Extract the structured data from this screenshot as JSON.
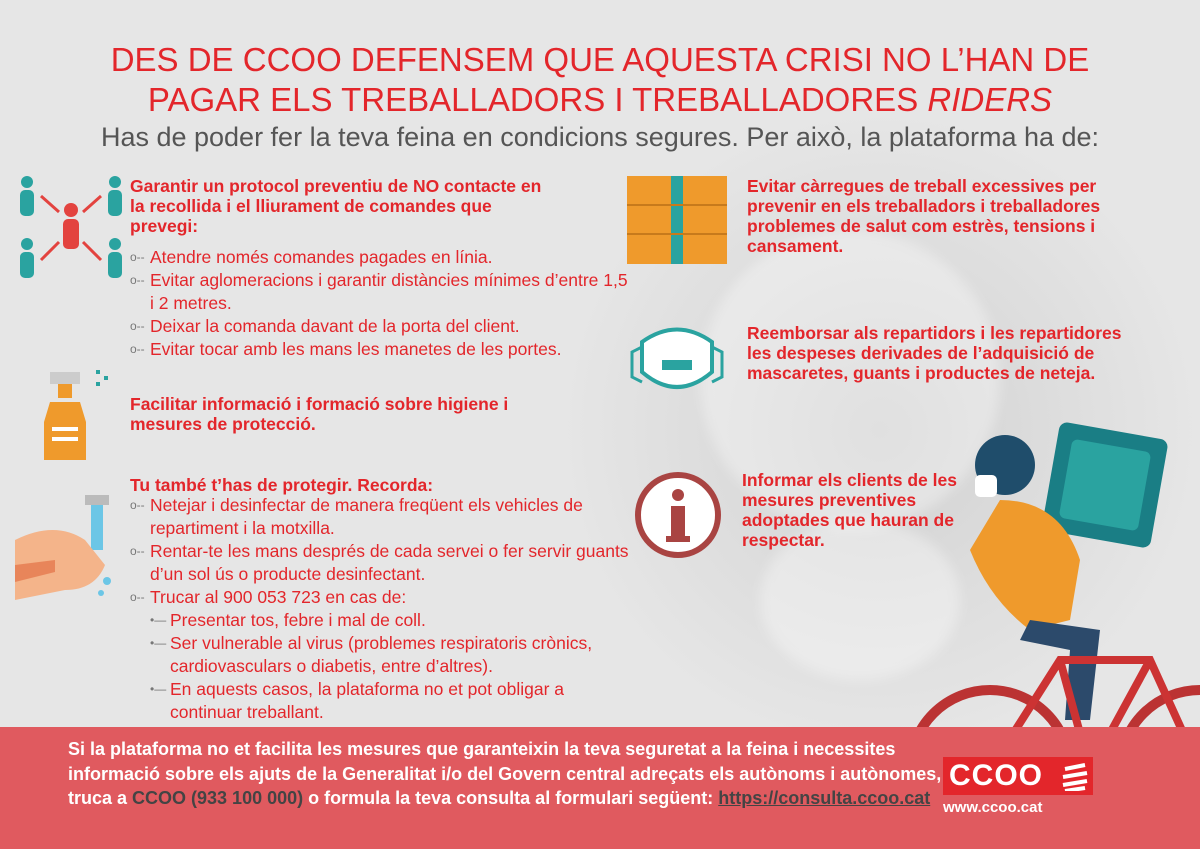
{
  "title": {
    "line1": "DES DE CCOO DEFENSEM QUE AQUESTA CRISI NO L’HAN DE",
    "line2_plain": "PAGAR ELS TREBALLADORS I TREBALLADORES ",
    "line2_italic": "RIDERS"
  },
  "subtitle": "Has de poder fer la teva feina en condicions segures. Per això, la plataforma ha de:",
  "colors": {
    "red": "#e3262b",
    "footer": "#e05a5f",
    "teal": "#2aa3a0",
    "orange": "#ef9a2c"
  },
  "left": {
    "protocol": {
      "icon": "people-distance-icon",
      "heading": "Garantir un protocol preventiu de NO contacte en la recollida i el lliurament de comandes que prevegi:",
      "items": [
        "Atendre només comandes pagades en línia.",
        "Evitar aglomeracions i garantir distàncies mínimes d’entre 1,5 i 2 metres.",
        "Deixar la comanda davant de la porta del client.",
        "Evitar tocar amb les mans les manetes de les portes."
      ]
    },
    "training": {
      "icon": "spray-bottle-icon",
      "heading": "Facilitar informació i formació sobre higiene i mesures de protecció."
    },
    "protect": {
      "icon": "hand-washing-icon",
      "heading": "Tu també t’has de protegir. Recorda:",
      "items": [
        "Netejar i desinfectar de manera freqüent els vehicles de repartiment i la motxilla.",
        "Rentar-te les mans després de cada servei o fer servir guants d’un sol ús o producte desinfectant.",
        "Trucar al 900 053 723 en cas de:"
      ],
      "subitems": [
        "Presentar tos, febre i mal de coll.",
        "Ser vulnerable al virus (problemes respiratoris crònics, cardiovasculars o diabetis, entre d’altres).",
        "En aquests casos, la plataforma no et pot obligar a continuar treballant."
      ]
    }
  },
  "right": {
    "workload": {
      "icon": "boxes-icon",
      "heading": "Evitar càrregues de treball excessives per prevenir en els treballadors i treballadores problemes de salut com estrès, tensions i cansament."
    },
    "reimburse": {
      "icon": "mask-icon",
      "heading": "Reemborsar als repartidors i les repartidores les despeses derivades de l’adquisició de mascaretes, guants i productes de neteja."
    },
    "inform": {
      "icon": "info-icon",
      "heading": "Informar els clients de les mesures preventives adoptades que hauran de respectar."
    }
  },
  "footer": {
    "text1": "Si la plataforma no et facilita les mesures que garanteixin la teva seguretat a la feina i necessites informació sobre els ajuts de la Generalitat i/o del Govern central adreçats els autònoms i autònomes, truca a ",
    "phone": "CCOO (933 100 000)",
    "text2": " o formula la teva consulta al formulari següent: ",
    "link": "https://consulta.ccoo.cat",
    "logo": "CCOO",
    "website": "www.ccoo.cat"
  }
}
